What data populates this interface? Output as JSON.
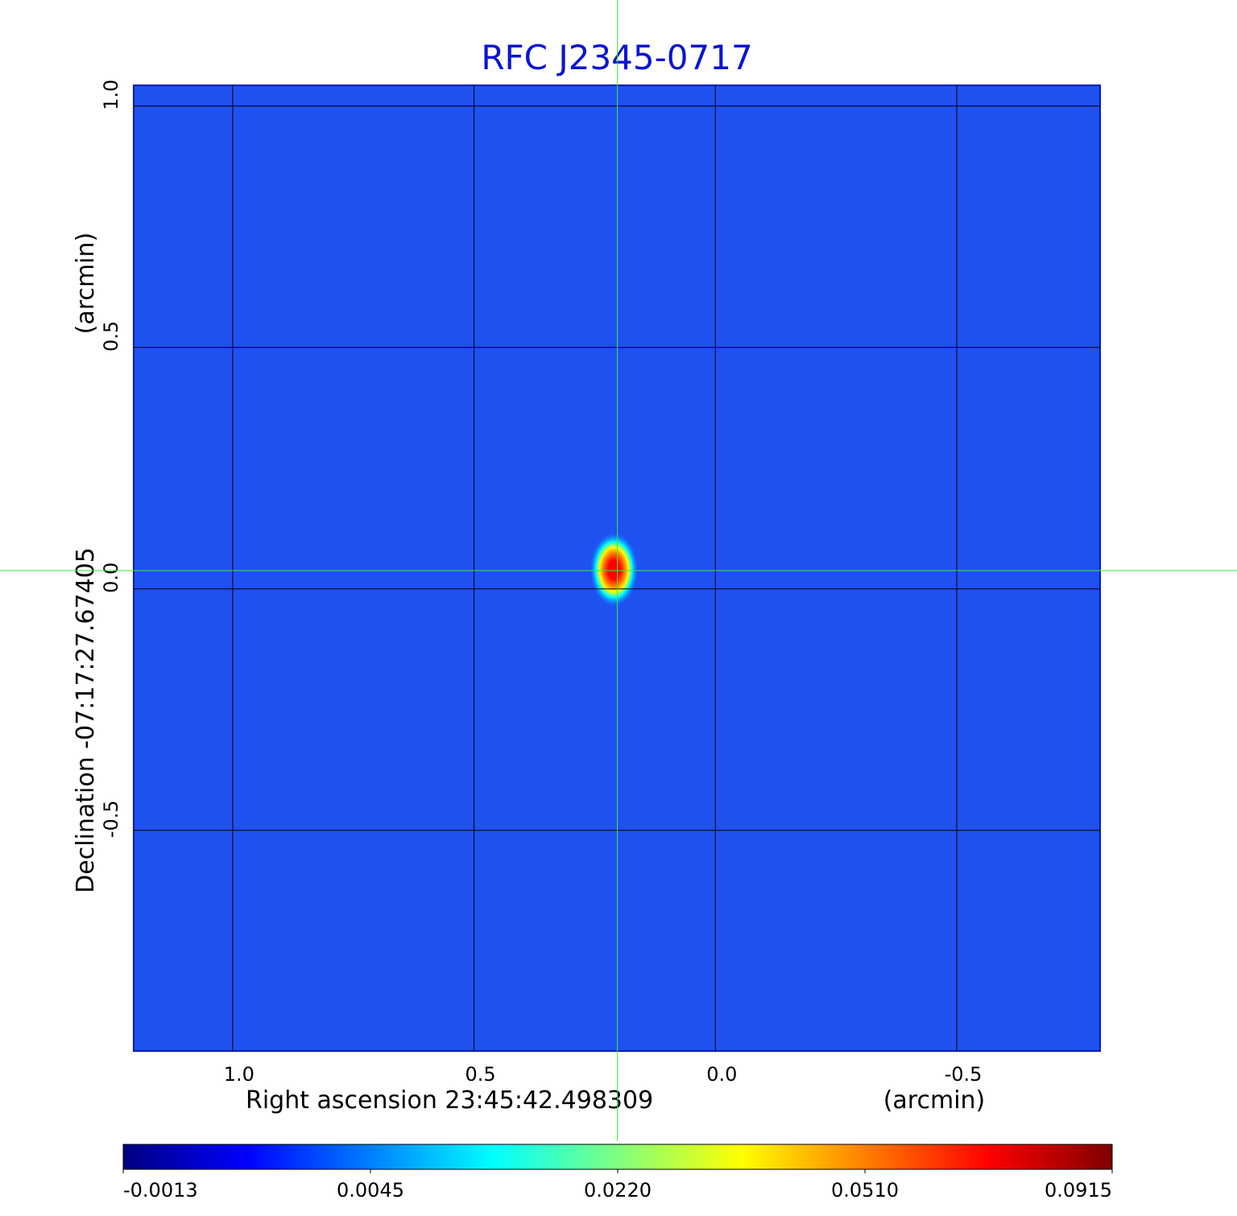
{
  "chart_data": {
    "type": "image",
    "title": "RFC J2345-0717",
    "title_color": "#0a14d2",
    "x_label": "Right ascension  23:45:42.498309",
    "x_unit": "(arcmin)",
    "y_label": "Declination  -07:17:27.67405",
    "y_unit": "(arcmin)",
    "xlim": [
      1.205,
      -0.797
    ],
    "ylim": [
      -0.957,
      1.043
    ],
    "xticks": [
      {
        "value": 1,
        "label": "1.0"
      },
      0.5,
      {
        "value": 0,
        "label": "0.0"
      },
      -0.5
    ],
    "yticks": [
      {
        "value": 1,
        "label": "1.0"
      },
      0.5,
      {
        "value": 0,
        "label": "0.0"
      },
      -0.5
    ],
    "grid": true,
    "background_color": "#1f50f0",
    "source": {
      "x": 0.21,
      "y": 0.04,
      "peak": 0.0915
    },
    "crosshair": {
      "x": 0.203,
      "y": 0.038,
      "color": "#33ee33"
    },
    "colorbar": {
      "ticks": [
        -0.0013,
        0.0045,
        {
          "value": 0.022,
          "label": "0.0220"
        },
        {
          "value": 0.051,
          "label": "0.0510"
        },
        0.0915
      ],
      "colors": [
        "#00007f",
        "#0000ff",
        "#007fff",
        "#00ffff",
        "#7fff7f",
        "#ffff00",
        "#ff7f00",
        "#ff0000",
        "#7f0000"
      ]
    }
  }
}
